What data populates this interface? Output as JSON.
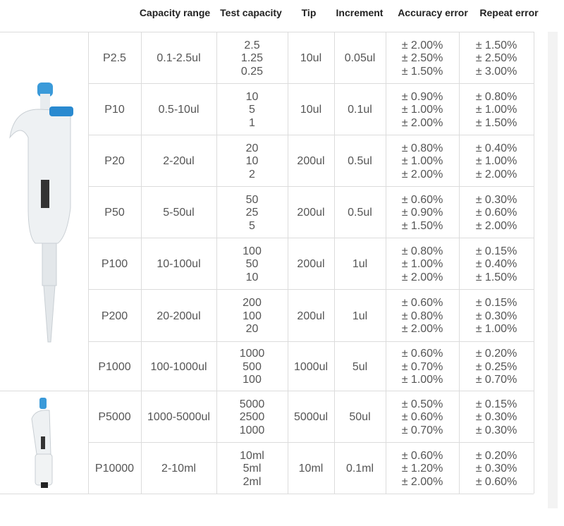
{
  "table": {
    "headers": [
      "Capacity range",
      "Test capacity",
      "Tip",
      "Increment",
      "Accuracy error",
      "Repeat error"
    ],
    "rows": [
      {
        "model": "P2.5",
        "range": "0.1-2.5ul",
        "test": [
          "2.5",
          "1.25",
          "0.25"
        ],
        "tip": "10ul",
        "increment": "0.05ul",
        "accuracy": [
          "± 2.00%",
          "± 2.50%",
          "± 1.50%"
        ],
        "repeat": [
          "± 1.50%",
          "± 2.50%",
          "± 3.00%"
        ]
      },
      {
        "model": "P10",
        "range": "0.5-10ul",
        "test": [
          "10",
          "5",
          "1"
        ],
        "tip": "10ul",
        "increment": "0.1ul",
        "accuracy": [
          "± 0.90%",
          "± 1.00%",
          "± 2.00%"
        ],
        "repeat": [
          "± 0.80%",
          "± 1.00%",
          "± 1.50%"
        ]
      },
      {
        "model": "P20",
        "range": "2-20ul",
        "test": [
          "20",
          "10",
          "2"
        ],
        "tip": "200ul",
        "increment": "0.5ul",
        "accuracy": [
          "± 0.80%",
          "± 1.00%",
          "± 2.00%"
        ],
        "repeat": [
          "± 0.40%",
          "± 1.00%",
          "± 2.00%"
        ]
      },
      {
        "model": "P50",
        "range": "5-50ul",
        "test": [
          "50",
          "25",
          "5"
        ],
        "tip": "200ul",
        "increment": "0.5ul",
        "accuracy": [
          "± 0.60%",
          "± 0.90%",
          "± 1.50%"
        ],
        "repeat": [
          "± 0.30%",
          "± 0.60%",
          "± 2.00%"
        ]
      },
      {
        "model": "P100",
        "range": "10-100ul",
        "test": [
          "100",
          "50",
          "10"
        ],
        "tip": "200ul",
        "increment": "1ul",
        "accuracy": [
          "± 0.80%",
          "± 1.00%",
          "± 2.00%"
        ],
        "repeat": [
          "± 0.15%",
          "± 0.40%",
          "± 1.50%"
        ]
      },
      {
        "model": "P200",
        "range": "20-200ul",
        "test": [
          "200",
          "100",
          "20"
        ],
        "tip": "200ul",
        "increment": "1ul",
        "accuracy": [
          "± 0.60%",
          "± 0.80%",
          "± 2.00%"
        ],
        "repeat": [
          "± 0.15%",
          "± 0.30%",
          "± 1.00%"
        ]
      },
      {
        "model": "P1000",
        "range": "100-1000ul",
        "test": [
          "1000",
          "500",
          "100"
        ],
        "tip": "1000ul",
        "increment": "5ul",
        "accuracy": [
          "± 0.60%",
          "± 0.70%",
          "± 1.00%"
        ],
        "repeat": [
          "± 0.20%",
          "± 0.25%",
          "± 0.70%"
        ]
      },
      {
        "model": "P5000",
        "range": "1000-5000ul",
        "test": [
          "5000",
          "2500",
          "1000"
        ],
        "tip": "5000ul",
        "increment": "50ul",
        "accuracy": [
          "± 0.50%",
          "± 0.60%",
          "± 0.70%"
        ],
        "repeat": [
          "± 0.15%",
          "± 0.30%",
          "± 0.30%"
        ]
      },
      {
        "model": "P10000",
        "range": "2-10ml",
        "test": [
          "10ml",
          "5ml",
          "2ml"
        ],
        "tip": "10ml",
        "increment": "0.1ml",
        "accuracy": [
          "± 0.60%",
          "± 1.20%",
          "± 2.00%"
        ],
        "repeat": [
          "± 0.20%",
          "± 0.30%",
          "± 0.60%"
        ]
      }
    ]
  }
}
